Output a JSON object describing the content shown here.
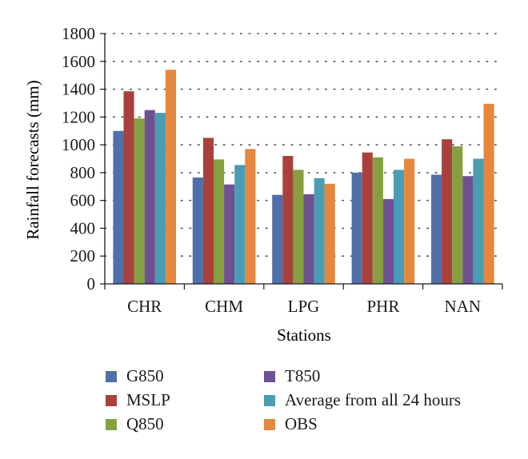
{
  "chart_data": {
    "type": "bar",
    "xlabel": "Stations",
    "ylabel": "Rainfall forecasts (mm)",
    "ylim": [
      0,
      1800
    ],
    "yticks": [
      "0",
      "200",
      "400",
      "600",
      "800",
      "1000",
      "1200",
      "1400",
      "1600",
      "1800"
    ],
    "grid": "horizontal dotted",
    "legend_position": "bottom",
    "categories": [
      "CHR",
      "CHM",
      "LPG",
      "PHR",
      "NAN"
    ],
    "series": [
      {
        "name": "G850",
        "color": "#4f6fa8",
        "values": [
          1100,
          765,
          640,
          800,
          785
        ]
      },
      {
        "name": "MSLP",
        "color": "#a8413c",
        "values": [
          1385,
          1050,
          920,
          945,
          1040
        ]
      },
      {
        "name": "Q850",
        "color": "#86a03f",
        "values": [
          1190,
          895,
          820,
          910,
          990
        ]
      },
      {
        "name": "T850",
        "color": "#6e5192",
        "values": [
          1250,
          715,
          645,
          610,
          775
        ]
      },
      {
        "name": "Average from all 24 hours",
        "color": "#4a9cb5",
        "values": [
          1230,
          855,
          760,
          820,
          900
        ]
      },
      {
        "name": "OBS",
        "color": "#e5873d",
        "values": [
          1540,
          970,
          720,
          900,
          1295
        ]
      }
    ]
  }
}
